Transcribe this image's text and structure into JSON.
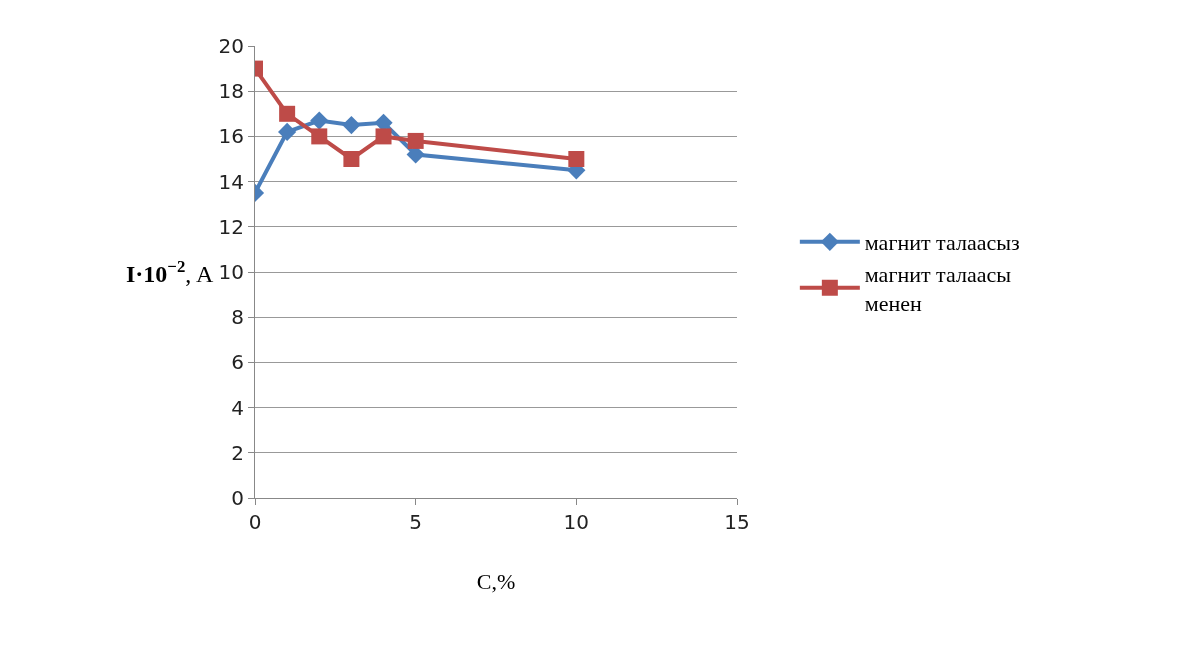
{
  "chart_data": {
    "type": "line",
    "xlabel": "C,%",
    "ylabel": "I·10$^{−2}$, A",
    "xlim": [
      0,
      15
    ],
    "xticks": [
      0,
      5,
      10,
      15
    ],
    "ylim": [
      0,
      20
    ],
    "yticks": [
      0,
      2,
      4,
      6,
      8,
      10,
      12,
      14,
      16,
      18,
      20
    ],
    "grid": "y",
    "legend": "right",
    "line_style": "solid",
    "x": [
      0,
      1,
      2,
      3,
      4,
      5,
      10
    ],
    "series": [
      {
        "name": "магнит талаасыз",
        "color": "#4a7ebb",
        "marker": "diamond",
        "values": [
          13.5,
          16.2,
          16.7,
          16.5,
          16.6,
          15.2,
          14.5
        ]
      },
      {
        "name": "магнит талаасы менен",
        "color": "#be4b48",
        "marker": "square",
        "values": [
          19,
          17,
          16,
          15,
          16,
          15.8,
          15
        ]
      }
    ]
  }
}
